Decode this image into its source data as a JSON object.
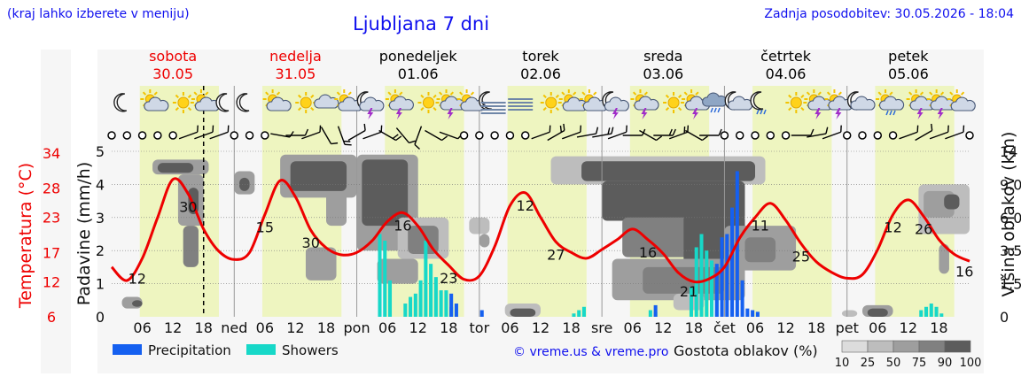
{
  "header": {
    "region_note": "(kraj lahko izberete v meniju)",
    "title": "Ljubljana 7 dni",
    "updated": "Zadnja posodobitev: 30.05.2026 - 18:04"
  },
  "colors": {
    "temperature": "#ee0000",
    "precipitation": "#1560f0",
    "showers": "#17d8c8",
    "daylight": "#eef5c0",
    "night": "#ffffff",
    "cloud_scale": [
      "#dcdcdc",
      "#bdbdbd",
      "#9e9e9e",
      "#808080",
      "#5c5c5c"
    ],
    "weekend_text": "#ee0000",
    "weekday_text": "#000000"
  },
  "days": [
    {
      "name": "sobota",
      "date": "30.05",
      "weekend": true
    },
    {
      "name": "nedelja",
      "date": "31.05",
      "weekend": true
    },
    {
      "name": "ponedeljek",
      "date": "01.06",
      "weekend": false
    },
    {
      "name": "torek",
      "date": "02.06",
      "weekend": false
    },
    {
      "name": "sreda",
      "date": "03.06",
      "weekend": false
    },
    {
      "name": "četrtek",
      "date": "04.06",
      "weekend": false
    },
    {
      "name": "petek",
      "date": "05.06",
      "weekend": false
    }
  ],
  "day_abbrev": [
    "ned",
    "pon",
    "tor",
    "sre",
    "čet",
    "pet"
  ],
  "footer": {
    "legend_precip": "Precipitation",
    "legend_showers": "Showers",
    "credit": "© vreme.us & vreme.pro",
    "cloud_title": "Gostota oblakov (%)",
    "cloud_scale_labels": [
      "10",
      "25",
      "50",
      "75",
      "90",
      "100"
    ]
  },
  "chart_data": {
    "type": "line",
    "x_unit": "hours from 30.05 00:00",
    "xlim": [
      0,
      168
    ],
    "now": 18,
    "xtick_hours": [
      6,
      12,
      18
    ],
    "axes": {
      "temperature": {
        "label": "Temperatura (°C)",
        "ticks": [
          6,
          12,
          17,
          23,
          28,
          34
        ],
        "range": [
          6,
          34
        ]
      },
      "precipitation": {
        "label": "Padavine (mm/h)",
        "ticks": [
          0,
          1,
          2,
          3,
          4,
          5
        ],
        "range": [
          0,
          5
        ]
      },
      "cloud_height": {
        "label": "Višina oblakov (km)",
        "ticks": [
          "0",
          "1.5",
          "3.5",
          "6.0",
          "9.0",
          "14"
        ]
      }
    },
    "temperature_series": {
      "x": [
        0,
        3,
        6,
        9,
        12,
        15,
        18,
        21,
        24,
        27,
        30,
        33,
        36,
        39,
        42,
        45,
        48,
        51,
        54,
        57,
        60,
        63,
        66,
        69,
        72,
        75,
        78,
        81,
        84,
        87,
        90,
        93,
        96,
        99,
        102,
        105,
        108,
        111,
        114,
        117,
        120,
        123,
        126,
        129,
        132,
        135,
        138,
        141,
        144,
        147,
        150,
        153,
        156,
        159,
        162,
        165,
        168
      ],
      "y": [
        14.5,
        12.2,
        16,
        23,
        29.5,
        27,
        21,
        17.2,
        15.8,
        17,
        23.5,
        29.3,
        26.5,
        20.8,
        17.8,
        16.6,
        17,
        19,
        22.3,
        23.8,
        21.5,
        17.5,
        14.8,
        12.4,
        13,
        18,
        25,
        27.2,
        23,
        18.8,
        17,
        16,
        17.5,
        19.2,
        21,
        19.2,
        16.8,
        13.5,
        12,
        12.5,
        14.5,
        19.5,
        23,
        25.4,
        22.5,
        18.5,
        15.4,
        13.6,
        12.6,
        13.2,
        17.5,
        23.5,
        26,
        23.2,
        19.2,
        16.7,
        15.5
      ]
    },
    "temperature_labels": [
      {
        "x": 5,
        "value": "12"
      },
      {
        "x": 15,
        "value": "30"
      },
      {
        "x": 30,
        "value": "15"
      },
      {
        "x": 39,
        "value": "30"
      },
      {
        "x": 57,
        "value": "16"
      },
      {
        "x": 66,
        "value": "23"
      },
      {
        "x": 81,
        "value": "12"
      },
      {
        "x": 87,
        "value": "27"
      },
      {
        "x": 105,
        "value": "16"
      },
      {
        "x": 113,
        "value": "21"
      },
      {
        "x": 127,
        "value": "11"
      },
      {
        "x": 135,
        "value": "25"
      },
      {
        "x": 153,
        "value": "12"
      },
      {
        "x": 159,
        "value": "26"
      },
      {
        "x": 167,
        "value": "16"
      }
    ],
    "precipitation": [
      {
        "x": 66.5,
        "value": 0.7
      },
      {
        "x": 67.5,
        "value": 0.4
      },
      {
        "x": 72.5,
        "value": 0.2
      },
      {
        "x": 106.5,
        "value": 0.35
      },
      {
        "x": 118.5,
        "value": 1.6
      },
      {
        "x": 119.5,
        "value": 2.4
      },
      {
        "x": 120.5,
        "value": 2.5
      },
      {
        "x": 121.5,
        "value": 3.3
      },
      {
        "x": 122.5,
        "value": 4.4
      },
      {
        "x": 123.5,
        "value": 1.1
      },
      {
        "x": 124.5,
        "value": 0.25
      },
      {
        "x": 125.5,
        "value": 0.2
      },
      {
        "x": 126.5,
        "value": 0.15
      }
    ],
    "showers": [
      {
        "x": 52.5,
        "value": 2.5
      },
      {
        "x": 53.5,
        "value": 2.3
      },
      {
        "x": 54.5,
        "value": 1.1
      },
      {
        "x": 57.5,
        "value": 0.4
      },
      {
        "x": 58.5,
        "value": 0.6
      },
      {
        "x": 59.5,
        "value": 0.7
      },
      {
        "x": 60.5,
        "value": 1.1
      },
      {
        "x": 61.5,
        "value": 2.3
      },
      {
        "x": 62.5,
        "value": 1.6
      },
      {
        "x": 63.5,
        "value": 1.2
      },
      {
        "x": 64.5,
        "value": 0.8
      },
      {
        "x": 65.5,
        "value": 0.8
      },
      {
        "x": 66.5,
        "value": 0.3
      },
      {
        "x": 90.5,
        "value": 0.1
      },
      {
        "x": 91.5,
        "value": 0.2
      },
      {
        "x": 92.5,
        "value": 0.3
      },
      {
        "x": 105.5,
        "value": 0.2
      },
      {
        "x": 106.5,
        "value": 0.15
      },
      {
        "x": 113.5,
        "value": 0.9
      },
      {
        "x": 114.5,
        "value": 2.1
      },
      {
        "x": 115.5,
        "value": 2.5
      },
      {
        "x": 116.5,
        "value": 2.0
      },
      {
        "x": 117.5,
        "value": 1.7
      },
      {
        "x": 118.5,
        "value": 0.8
      },
      {
        "x": 158.5,
        "value": 0.2
      },
      {
        "x": 159.5,
        "value": 0.3
      },
      {
        "x": 160.5,
        "value": 0.4
      },
      {
        "x": 161.5,
        "value": 0.3
      },
      {
        "x": 162.5,
        "value": 0.1
      }
    ],
    "clouds": [
      {
        "x0": 2,
        "x1": 6,
        "z0": 0.05,
        "z1": 0.12,
        "level": 2
      },
      {
        "x0": 4,
        "x1": 6,
        "z0": 0.06,
        "z1": 0.1,
        "level": 4
      },
      {
        "x0": 8,
        "x1": 19,
        "z0": 0.86,
        "z1": 0.95,
        "level": 2
      },
      {
        "x0": 9,
        "x1": 16,
        "z0": 0.87,
        "z1": 0.93,
        "level": 4
      },
      {
        "x0": 13,
        "x1": 18,
        "z0": 0.55,
        "z1": 0.86,
        "level": 2
      },
      {
        "x0": 14,
        "x1": 17,
        "z0": 0.3,
        "z1": 0.55,
        "level": 3
      },
      {
        "x0": 15,
        "x1": 17,
        "z0": 0.62,
        "z1": 0.78,
        "level": 4
      },
      {
        "x0": 24,
        "x1": 28,
        "z0": 0.74,
        "z1": 0.88,
        "level": 2
      },
      {
        "x0": 25,
        "x1": 27,
        "z0": 0.76,
        "z1": 0.84,
        "level": 4
      },
      {
        "x0": 33,
        "x1": 48,
        "z0": 0.72,
        "z1": 0.98,
        "level": 2
      },
      {
        "x0": 35,
        "x1": 46,
        "z0": 0.76,
        "z1": 0.94,
        "level": 4
      },
      {
        "x0": 42,
        "x1": 46,
        "z0": 0.55,
        "z1": 0.75,
        "level": 2
      },
      {
        "x0": 38,
        "x1": 44,
        "z0": 0.22,
        "z1": 0.42,
        "level": 2
      },
      {
        "x0": 48,
        "x1": 60,
        "z0": 0.4,
        "z1": 0.98,
        "level": 2
      },
      {
        "x0": 49,
        "x1": 58,
        "z0": 0.55,
        "z1": 0.95,
        "level": 4
      },
      {
        "x0": 56,
        "x1": 66,
        "z0": 0.35,
        "z1": 0.6,
        "level": 1
      },
      {
        "x0": 58,
        "x1": 64,
        "z0": 0.38,
        "z1": 0.55,
        "level": 3
      },
      {
        "x0": 52,
        "x1": 60,
        "z0": 0.2,
        "z1": 0.35,
        "level": 2
      },
      {
        "x0": 70,
        "x1": 74,
        "z0": 0.5,
        "z1": 0.6,
        "level": 1
      },
      {
        "x0": 72,
        "x1": 74,
        "z0": 0.42,
        "z1": 0.5,
        "level": 2
      },
      {
        "x0": 77,
        "x1": 84,
        "z0": 0.0,
        "z1": 0.08,
        "level": 1
      },
      {
        "x0": 78,
        "x1": 83,
        "z0": 0.0,
        "z1": 0.05,
        "level": 4
      },
      {
        "x0": 86,
        "x1": 128,
        "z0": 0.8,
        "z1": 0.97,
        "level": 1
      },
      {
        "x0": 92,
        "x1": 126,
        "z0": 0.82,
        "z1": 0.94,
        "level": 4
      },
      {
        "x0": 96,
        "x1": 124,
        "z0": 0.58,
        "z1": 0.82,
        "level": 4
      },
      {
        "x0": 100,
        "x1": 114,
        "z0": 0.36,
        "z1": 0.6,
        "level": 3
      },
      {
        "x0": 112,
        "x1": 124,
        "z0": 0.3,
        "z1": 0.62,
        "level": 4
      },
      {
        "x0": 98,
        "x1": 124,
        "z0": 0.1,
        "z1": 0.35,
        "level": 2
      },
      {
        "x0": 104,
        "x1": 120,
        "z0": 0.14,
        "z1": 0.3,
        "level": 3
      },
      {
        "x0": 120,
        "x1": 134,
        "z0": 0.28,
        "z1": 0.55,
        "level": 2
      },
      {
        "x0": 124,
        "x1": 130,
        "z0": 0.33,
        "z1": 0.48,
        "level": 3
      },
      {
        "x0": 110,
        "x1": 116,
        "z0": 0.04,
        "z1": 0.14,
        "level": 1
      },
      {
        "x0": 143,
        "x1": 146,
        "z0": 0.0,
        "z1": 0.04,
        "level": 1
      },
      {
        "x0": 147,
        "x1": 153,
        "z0": 0.0,
        "z1": 0.07,
        "level": 2
      },
      {
        "x0": 148,
        "x1": 152,
        "z0": 0.0,
        "z1": 0.05,
        "level": 4
      },
      {
        "x0": 158,
        "x1": 168,
        "z0": 0.5,
        "z1": 0.8,
        "level": 1
      },
      {
        "x0": 159,
        "x1": 165,
        "z0": 0.6,
        "z1": 0.76,
        "level": 2
      },
      {
        "x0": 163,
        "x1": 166,
        "z0": 0.65,
        "z1": 0.74,
        "level": 4
      },
      {
        "x0": 162,
        "x1": 164,
        "z0": 0.26,
        "z1": 0.44,
        "level": 2
      }
    ],
    "weather_icons": [
      {
        "x": 1,
        "icon": "moon"
      },
      {
        "x": 7,
        "icon": "sun-cloud"
      },
      {
        "x": 13,
        "icon": "sun"
      },
      {
        "x": 17,
        "icon": "sun-cloud"
      },
      {
        "x": 21,
        "icon": "moon"
      },
      {
        "x": 25,
        "icon": "moon"
      },
      {
        "x": 31,
        "icon": "sun-cloud"
      },
      {
        "x": 37,
        "icon": "sun"
      },
      {
        "x": 41,
        "icon": "cloud"
      },
      {
        "x": 45,
        "icon": "sun-cloud"
      },
      {
        "x": 49,
        "icon": "moon-storm"
      },
      {
        "x": 55,
        "icon": "sun-storm"
      },
      {
        "x": 61,
        "icon": "sun"
      },
      {
        "x": 65,
        "icon": "sun-storm"
      },
      {
        "x": 69,
        "icon": "sun-cloud"
      },
      {
        "x": 73,
        "icon": "moon-fog"
      },
      {
        "x": 79,
        "icon": "fog"
      },
      {
        "x": 85,
        "icon": "sun"
      },
      {
        "x": 89,
        "icon": "sun-cloud"
      },
      {
        "x": 93,
        "icon": "sun-cloud"
      },
      {
        "x": 97,
        "icon": "moon-storm"
      },
      {
        "x": 103,
        "icon": "sun-storm"
      },
      {
        "x": 109,
        "icon": "sun"
      },
      {
        "x": 113,
        "icon": "sun-storm"
      },
      {
        "x": 117,
        "icon": "rain-cloud"
      },
      {
        "x": 121,
        "icon": "moon-cloud"
      },
      {
        "x": 126,
        "icon": "moon-rain"
      },
      {
        "x": 133,
        "icon": "sun"
      },
      {
        "x": 137,
        "icon": "sun-storm"
      },
      {
        "x": 141,
        "icon": "sun-storm"
      },
      {
        "x": 145,
        "icon": "moon-cloud"
      },
      {
        "x": 151,
        "icon": "sun-rain"
      },
      {
        "x": 157,
        "icon": "sun-storm"
      },
      {
        "x": 161,
        "icon": "sun-storm"
      },
      {
        "x": 165,
        "icon": "sun-cloud"
      }
    ],
    "wind": [
      {
        "x": 0,
        "calm": true
      },
      {
        "x": 3,
        "calm": true
      },
      {
        "x": 6,
        "calm": true
      },
      {
        "x": 9,
        "calm": true
      },
      {
        "x": 12,
        "calm": true
      },
      {
        "x": 15,
        "dir": 250,
        "barbs": 1
      },
      {
        "x": 18,
        "dir": 250,
        "barbs": 1
      },
      {
        "x": 21,
        "dir": 250,
        "barbs": 1
      },
      {
        "x": 24,
        "calm": true
      },
      {
        "x": 27,
        "calm": true
      },
      {
        "x": 30,
        "calm": true
      },
      {
        "x": 33,
        "dir": 280,
        "barbs": 1
      },
      {
        "x": 36,
        "dir": 270,
        "barbs": 1
      },
      {
        "x": 39,
        "dir": 250,
        "barbs": 1
      },
      {
        "x": 42,
        "dir": 330,
        "barbs": 1
      },
      {
        "x": 45,
        "dir": 340,
        "barbs": 2
      },
      {
        "x": 48,
        "dir": 240,
        "barbs": 1
      },
      {
        "x": 51,
        "dir": 250,
        "barbs": 1
      },
      {
        "x": 54,
        "dir": 300,
        "barbs": 2
      },
      {
        "x": 57,
        "dir": 320,
        "barbs": 1
      },
      {
        "x": 60,
        "dir": 20,
        "barbs": 1
      },
      {
        "x": 63,
        "dir": 300,
        "barbs": 1
      },
      {
        "x": 66,
        "dir": 290,
        "barbs": 1
      },
      {
        "x": 69,
        "calm": true
      },
      {
        "x": 72,
        "calm": true
      },
      {
        "x": 75,
        "calm": true
      },
      {
        "x": 78,
        "calm": true
      },
      {
        "x": 81,
        "calm": true
      },
      {
        "x": 84,
        "dir": 250,
        "barbs": 1
      },
      {
        "x": 87,
        "dir": 240,
        "barbs": 2
      },
      {
        "x": 90,
        "dir": 250,
        "barbs": 1
      },
      {
        "x": 93,
        "dir": 260,
        "barbs": 1
      },
      {
        "x": 96,
        "dir": 260,
        "barbs": 2
      },
      {
        "x": 99,
        "dir": 250,
        "barbs": 1
      },
      {
        "x": 102,
        "dir": 270,
        "barbs": 1
      },
      {
        "x": 105,
        "dir": 300,
        "barbs": 1
      },
      {
        "x": 108,
        "dir": 270,
        "barbs": 2
      },
      {
        "x": 111,
        "dir": 250,
        "barbs": 2
      },
      {
        "x": 114,
        "dir": 300,
        "barbs": 1
      },
      {
        "x": 117,
        "dir": 270,
        "barbs": 1
      },
      {
        "x": 120,
        "calm": true
      },
      {
        "x": 123,
        "calm": true
      },
      {
        "x": 126,
        "calm": true
      },
      {
        "x": 129,
        "calm": true
      },
      {
        "x": 132,
        "calm": true
      },
      {
        "x": 135,
        "dir": 270,
        "barbs": 1
      },
      {
        "x": 138,
        "dir": 260,
        "barbs": 1
      },
      {
        "x": 141,
        "dir": 250,
        "barbs": 1
      },
      {
        "x": 144,
        "calm": true
      },
      {
        "x": 147,
        "calm": true
      },
      {
        "x": 150,
        "calm": true
      },
      {
        "x": 153,
        "calm": true
      },
      {
        "x": 156,
        "dir": 250,
        "barbs": 1
      },
      {
        "x": 159,
        "dir": 240,
        "barbs": 1
      },
      {
        "x": 162,
        "dir": 250,
        "barbs": 1
      },
      {
        "x": 165,
        "dir": 250,
        "barbs": 1
      },
      {
        "x": 168,
        "calm": true
      }
    ]
  }
}
